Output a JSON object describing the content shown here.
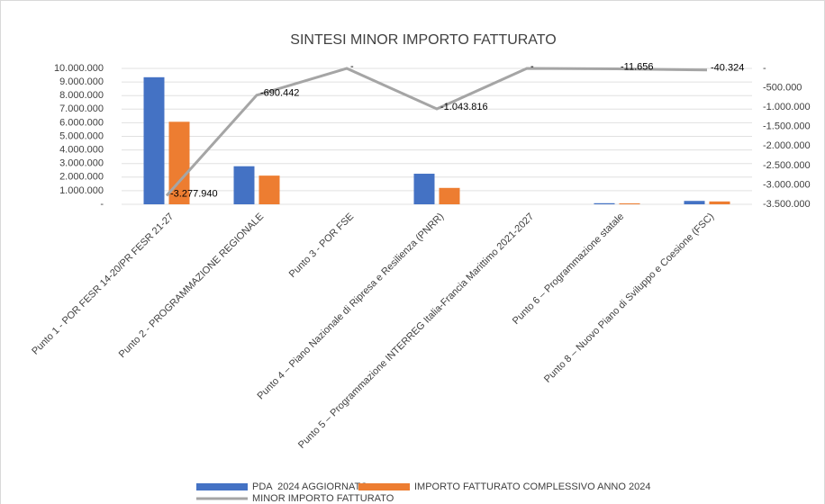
{
  "chart_data": {
    "type": "bar_line",
    "title": "SINTESI MINOR IMPORTO FATTURATO",
    "categories": [
      "Punto 1 - POR FESR 14-20/PR FESR 21-27",
      "Punto 2 - PROGRAMMAZIONE REGIONALE",
      "Punto 3 - POR FSE",
      "Punto 4 – Piano Nazionale di Ripresa e Resilienza (PNRR)",
      "Punto 5 – Programmazione INTERREG Italia-Francia Marittimo 2021-2027",
      "Punto 6 – Programmazione statale",
      "Punto 8 – Nuovo Piano di Sviluppo e Coesione (FSC)"
    ],
    "series": [
      {
        "name": "PDA  2024 AGGIORNATO",
        "type": "bar",
        "color": "#4472c4",
        "values": [
          9350000,
          2800000,
          0,
          2250000,
          0,
          80000,
          250000
        ]
      },
      {
        "name": "IMPORTO FATTURATO COMPLESSIVO ANNO 2024",
        "type": "bar",
        "color": "#ed7d31",
        "values": [
          6072060,
          2109558,
          0,
          1206184,
          0,
          68344,
          209676
        ]
      },
      {
        "name": "MINOR IMPORTO FATTURATO",
        "type": "line",
        "axis": "y2",
        "color": "#a5a5a5",
        "values": [
          -3277940,
          -690442,
          0,
          -1043816,
          0,
          -11656,
          -40324
        ],
        "value_labels": [
          "-3.277.940",
          "-690.442",
          "-",
          "-1.043.816",
          "-",
          "-11.656",
          "-40.324"
        ]
      }
    ],
    "ylim": [
      0,
      10000000
    ],
    "yticks": [
      {
        "value": 0,
        "label": "-"
      },
      {
        "value": 1000000,
        "label": "1.000.000"
      },
      {
        "value": 2000000,
        "label": "2.000.000"
      },
      {
        "value": 3000000,
        "label": "3.000.000"
      },
      {
        "value": 4000000,
        "label": "4.000.000"
      },
      {
        "value": 5000000,
        "label": "5.000.000"
      },
      {
        "value": 6000000,
        "label": "6.000.000"
      },
      {
        "value": 7000000,
        "label": "7.000.000"
      },
      {
        "value": 8000000,
        "label": "8.000.000"
      },
      {
        "value": 9000000,
        "label": "9.000.000"
      },
      {
        "value": 10000000,
        "label": "10.000.000"
      }
    ],
    "y2lim": [
      -3500000,
      0
    ],
    "y2ticks": [
      {
        "value": 0,
        "label": "-"
      },
      {
        "value": -500000,
        "label": "-500.000"
      },
      {
        "value": -1000000,
        "label": "-1.000.000"
      },
      {
        "value": -1500000,
        "label": "-1.500.000"
      },
      {
        "value": -2000000,
        "label": "-2.000.000"
      },
      {
        "value": -2500000,
        "label": "-2.500.000"
      },
      {
        "value": -3000000,
        "label": "-3.000.000"
      },
      {
        "value": -3500000,
        "label": "-3.500.000"
      }
    ],
    "grid": true
  }
}
